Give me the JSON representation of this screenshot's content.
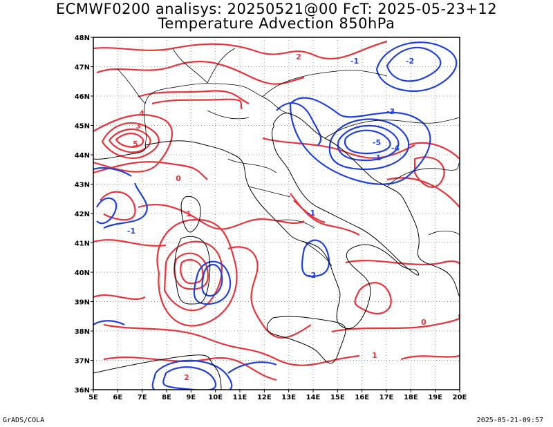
{
  "title": {
    "line1": "ECMWF0200 analisys: 20250521@00 FcT: 2025-05-23+12",
    "line2": "Temperature Advection 850hPa"
  },
  "map": {
    "lon_ticks": [
      "5E",
      "6E",
      "7E",
      "8E",
      "9E",
      "10E",
      "11E",
      "12E",
      "13E",
      "14E",
      "15E",
      "16E",
      "17E",
      "18E",
      "19E",
      "20E"
    ],
    "lat_ticks": [
      "36N",
      "37N",
      "38N",
      "39N",
      "40N",
      "41N",
      "42N",
      "43N",
      "44N",
      "45N",
      "46N",
      "47N",
      "48N"
    ],
    "lon_range": [
      5,
      20
    ],
    "lat_range": [
      36,
      48
    ],
    "grid": "dotted",
    "colors": {
      "positive": "#e8333a",
      "negative": "#1f3fe0",
      "borders": "#000000",
      "grid": "#999999"
    },
    "contour_labels": [
      {
        "text": "2",
        "sign": "pos"
      },
      {
        "text": "-2",
        "sign": "neg"
      },
      {
        "text": "-1",
        "sign": "neg"
      },
      {
        "text": "-3",
        "sign": "neg"
      },
      {
        "text": "-5",
        "sign": "neg"
      },
      {
        "text": "-4",
        "sign": "neg"
      },
      {
        "text": "-1",
        "sign": "neg"
      },
      {
        "text": "4",
        "sign": "pos"
      },
      {
        "text": "5",
        "sign": "pos"
      },
      {
        "text": "3",
        "sign": "pos"
      },
      {
        "text": "0",
        "sign": "pos"
      },
      {
        "text": "1",
        "sign": "pos"
      },
      {
        "text": "-1",
        "sign": "neg"
      },
      {
        "text": "-1",
        "sign": "neg"
      },
      {
        "text": "-2",
        "sign": "neg"
      },
      {
        "text": "2",
        "sign": "pos"
      },
      {
        "text": "0",
        "sign": "pos"
      },
      {
        "text": "1",
        "sign": "pos"
      }
    ]
  },
  "footer": {
    "left": "GrADS/COLA",
    "right": "2025-05-21-09:57"
  }
}
